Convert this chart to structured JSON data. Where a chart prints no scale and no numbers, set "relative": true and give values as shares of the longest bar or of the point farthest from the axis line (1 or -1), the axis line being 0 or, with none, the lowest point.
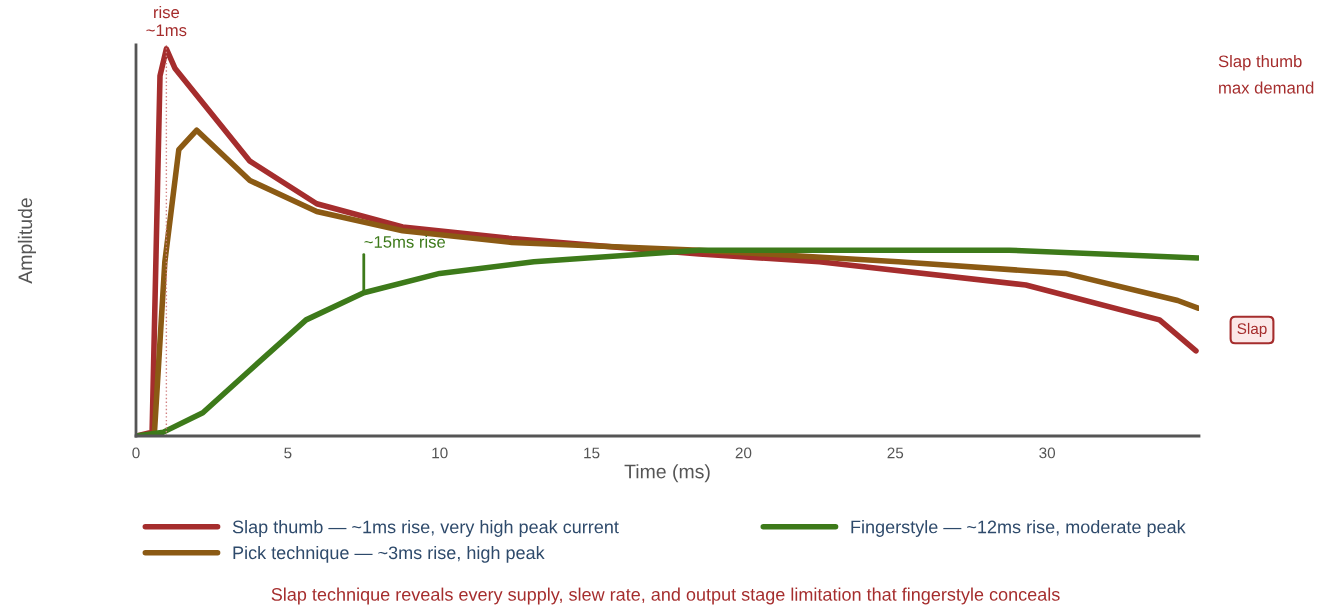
{
  "chart_data": {
    "type": "line",
    "xlabel": "Time (ms)",
    "ylabel": "Amplitude",
    "relative": true,
    "xlim": [
      0,
      35
    ],
    "xticks": [
      0,
      5,
      10,
      15,
      20,
      25,
      30
    ],
    "series": [
      {
        "name": "Slap thumb — ~1ms rise, very high peak current",
        "color": "#a52d2d",
        "x": [
          0,
          0.53,
          0.79,
          1.0,
          1.28,
          3.75,
          5.95,
          8.78,
          12.37,
          18.55,
          22.5,
          29.3,
          33.7,
          34.9
        ],
        "values": [
          0,
          0.01,
          0.93,
          1,
          0.95,
          0.71,
          0.6,
          0.54,
          0.51,
          0.47,
          0.45,
          0.39,
          0.3,
          0.22
        ]
      },
      {
        "name": "Pick technique — ~3ms rise, high peak",
        "color": "#8b5a14",
        "x": [
          0,
          0.6,
          0.95,
          1.41,
          2.0,
          3.75,
          5.95,
          8.78,
          12.37,
          18.55,
          25.1,
          30.6,
          34.3,
          34.97
        ],
        "values": [
          0,
          0,
          0.45,
          0.74,
          0.79,
          0.66,
          0.58,
          0.53,
          0.5,
          0.48,
          0.45,
          0.42,
          0.35,
          0.33
        ]
      },
      {
        "name": "Fingerstyle — ~12ms rise, moderate peak",
        "color": "#3d7a1a",
        "x": [
          0,
          0.9,
          2.2,
          3.75,
          5.6,
          7.5,
          10,
          13.1,
          18.55,
          22.5,
          28.75,
          34.97
        ],
        "values": [
          0,
          0.01,
          0.06,
          0.17,
          0.3,
          0.37,
          0.42,
          0.45,
          0.48,
          0.48,
          0.48,
          0.46
        ]
      }
    ],
    "ref_lines": [
      {
        "axis": "x",
        "value": 1,
        "label": "rise\n~1ms",
        "color": "#d08080",
        "line_style": "dotted"
      }
    ],
    "annotations": [
      {
        "text": "~15ms rise",
        "x": 7.5,
        "y": 0.37
      },
      "Slap",
      "Slap thumb\nmax demand",
      "Slap technique reveals every supply, slew rate, and output stage limitation that fingerstyle conceals"
    ],
    "legend": "bottom",
    "grid": false,
    "marker": "none",
    "line_style": "solid"
  }
}
